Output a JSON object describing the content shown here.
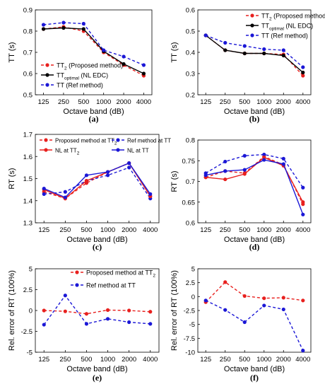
{
  "chart_data": [
    {
      "id": "a",
      "type": "line",
      "panel_label": "(a)",
      "xlabel": "Octave band (dB)",
      "ylabel": "TT (s)",
      "categories": [
        "125",
        "250",
        "500",
        "1000",
        "2000",
        "4000"
      ],
      "ylim": [
        0.5,
        0.9
      ],
      "yticks": [
        "0.5",
        "0.6",
        "0.7",
        "0.8",
        "0.9"
      ],
      "legend_position": "lower-left",
      "series": [
        {
          "name": "TT",
          "sub": "2",
          "suffix": " (Proposed method)",
          "color": "#e8201e",
          "dashed": true,
          "values": [
            0.81,
            0.82,
            0.8,
            0.7,
            0.64,
            0.59
          ]
        },
        {
          "name": "TT",
          "sub": "optimal",
          "suffix": " (NL EDC)",
          "color": "#000000",
          "dashed": false,
          "values": [
            0.81,
            0.815,
            0.81,
            0.705,
            0.645,
            0.6
          ]
        },
        {
          "name": "TT (Ref method)",
          "sub": "",
          "suffix": "",
          "color": "#1b17d6",
          "dashed": true,
          "values": [
            0.83,
            0.84,
            0.835,
            0.71,
            0.68,
            0.64
          ]
        }
      ]
    },
    {
      "id": "b",
      "type": "line",
      "panel_label": "(b)",
      "xlabel": "Octave band (dB)",
      "ylabel": "TT (s)",
      "categories": [
        "125",
        "250",
        "500",
        "1000",
        "2000",
        "4000"
      ],
      "ylim": [
        0.2,
        0.6
      ],
      "yticks": [
        "0.2",
        "0.3",
        "0.4",
        "0.5",
        "0.6"
      ],
      "legend_position": "top-right",
      "series": [
        {
          "name": "TT",
          "sub": "2",
          "suffix": " (Proposed method)",
          "color": "#e8201e",
          "dashed": true,
          "values": [
            0.48,
            0.41,
            0.395,
            0.395,
            0.39,
            0.29
          ]
        },
        {
          "name": "TT",
          "sub": "optimal",
          "suffix": " (NL EDC)",
          "color": "#000000",
          "dashed": false,
          "values": [
            0.48,
            0.41,
            0.395,
            0.395,
            0.385,
            0.305
          ]
        },
        {
          "name": "TT (Ref method)",
          "sub": "",
          "suffix": "",
          "color": "#1b17d6",
          "dashed": true,
          "values": [
            0.48,
            0.445,
            0.43,
            0.415,
            0.41,
            0.33
          ]
        }
      ]
    },
    {
      "id": "c",
      "type": "line",
      "panel_label": "(c)",
      "xlabel": "Octave band (dB)",
      "ylabel": "RT (s)",
      "categories": [
        "125",
        "250",
        "500",
        "1000",
        "2000",
        "4000"
      ],
      "ylim": [
        1.3,
        1.7
      ],
      "yticks": [
        "1.3",
        "1.4",
        "1.5",
        "1.6",
        "1.7"
      ],
      "legend_position": "top",
      "series": [
        {
          "name": "Proposed method  at TT",
          "sub": "2",
          "suffix": "",
          "color": "#e8201e",
          "dashed": true,
          "values": [
            1.44,
            1.41,
            1.48,
            1.53,
            1.57,
            1.42
          ]
        },
        {
          "name": "Ref method at TT",
          "sub": "",
          "suffix": "",
          "color": "#1b17d6",
          "dashed": true,
          "values": [
            1.43,
            1.44,
            1.49,
            1.515,
            1.55,
            1.41
          ]
        },
        {
          "name": "NL at TT",
          "sub": "2",
          "suffix": "",
          "color": "#e8201e",
          "dashed": false,
          "values": [
            1.45,
            1.41,
            1.49,
            1.53,
            1.57,
            1.42
          ]
        },
        {
          "name": "NL at TT",
          "sub": "",
          "suffix": "",
          "color": "#1b17d6",
          "dashed": false,
          "values": [
            1.455,
            1.415,
            1.515,
            1.53,
            1.57,
            1.43
          ]
        }
      ]
    },
    {
      "id": "d",
      "type": "line",
      "panel_label": "(d)",
      "xlabel": "Octave band (dB)",
      "ylabel": "RT (s)",
      "categories": [
        "125",
        "250",
        "500",
        "1000",
        "2000",
        "4000"
      ],
      "ylim": [
        0.6,
        0.8
      ],
      "yticks": [
        "0.6",
        "0.65",
        "0.7",
        "0.75",
        "0.8"
      ],
      "legend_position": "none",
      "series": [
        {
          "name": "",
          "sub": "",
          "suffix": "",
          "color": "#e8201e",
          "dashed": true,
          "values": [
            0.71,
            0.725,
            0.72,
            0.76,
            0.74,
            0.645
          ]
        },
        {
          "name": "",
          "sub": "",
          "suffix": "",
          "color": "#1b17d6",
          "dashed": true,
          "values": [
            0.72,
            0.748,
            0.762,
            0.765,
            0.755,
            0.685
          ]
        },
        {
          "name": "",
          "sub": "",
          "suffix": "",
          "color": "#e8201e",
          "dashed": false,
          "values": [
            0.71,
            0.705,
            0.718,
            0.758,
            0.738,
            0.65
          ]
        },
        {
          "name": "",
          "sub": "",
          "suffix": "",
          "color": "#1b17d6",
          "dashed": false,
          "values": [
            0.715,
            0.725,
            0.728,
            0.752,
            0.742,
            0.62
          ]
        }
      ]
    },
    {
      "id": "e",
      "type": "line",
      "panel_label": "(e)",
      "xlabel": "Octave band (dB)",
      "ylabel": "Rel. error of RT (100%)",
      "categories": [
        "125",
        "250",
        "500",
        "1000",
        "2000",
        "4000"
      ],
      "ylim": [
        -5,
        5
      ],
      "yticks": [
        "-5",
        "-2.5",
        "0",
        "2.5",
        "5"
      ],
      "legend_position": "top-right",
      "series": [
        {
          "name": "Proposed method at TT",
          "sub": "2",
          "suffix": "",
          "color": "#e8201e",
          "dashed": true,
          "values": [
            0.0,
            -0.1,
            -0.4,
            0.05,
            0.0,
            -0.15
          ]
        },
        {
          "name": "Ref method at TT",
          "sub": "",
          "suffix": "",
          "color": "#1b17d6",
          "dashed": true,
          "values": [
            -1.7,
            1.8,
            -1.6,
            -1.0,
            -1.4,
            -1.6
          ]
        }
      ]
    },
    {
      "id": "f",
      "type": "line",
      "panel_label": "(f)",
      "xlabel": "Octave band (dB)",
      "ylabel": "Rel. error of RT (100%)",
      "categories": [
        "125",
        "250",
        "500",
        "1000",
        "2000",
        "4000"
      ],
      "ylim": [
        -10,
        5
      ],
      "yticks": [
        "-10",
        "-7.5",
        "-5",
        "-2.5",
        "0",
        "2.5",
        "5"
      ],
      "legend_position": "none",
      "series": [
        {
          "name": "",
          "sub": "",
          "suffix": "",
          "color": "#e8201e",
          "dashed": true,
          "values": [
            -1.0,
            2.6,
            0.1,
            -0.3,
            -0.2,
            -0.7
          ]
        },
        {
          "name": "",
          "sub": "",
          "suffix": "",
          "color": "#1b17d6",
          "dashed": true,
          "values": [
            -0.7,
            -2.4,
            -4.6,
            -1.6,
            -2.3,
            -9.7
          ]
        }
      ]
    }
  ]
}
